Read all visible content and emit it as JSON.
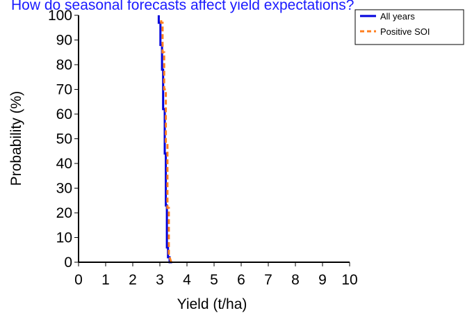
{
  "chart_data": {
    "type": "line",
    "title": "How do seasonal forecasts affect yield expectations?",
    "xlabel": "Yield (t/ha)",
    "ylabel": "Probability (%)",
    "xlim": [
      0,
      10
    ],
    "ylim": [
      0,
      100
    ],
    "x_ticks": [
      "0",
      "1",
      "2",
      "3",
      "4",
      "5",
      "6",
      "7",
      "8",
      "9",
      "10"
    ],
    "y_ticks": [
      "0",
      "10",
      "20",
      "30",
      "40",
      "50",
      "60",
      "70",
      "80",
      "90",
      "100"
    ],
    "grid": false,
    "legend_position": "top-right",
    "series": [
      {
        "name": "All years",
        "color": "#0000dd",
        "style": "solid",
        "x": [
          2.96,
          2.96,
          3.02,
          3.02,
          3.08,
          3.08,
          3.12,
          3.12,
          3.18,
          3.18,
          3.22,
          3.22,
          3.26,
          3.26,
          3.3,
          3.3,
          3.36,
          3.36,
          3.45
        ],
        "y": [
          100,
          97,
          97,
          88,
          88,
          78,
          78,
          62,
          62,
          44,
          44,
          23,
          23,
          6,
          6,
          2,
          2,
          0,
          0
        ]
      },
      {
        "name": "Positive SOI",
        "color": "#ff7f1f",
        "style": "dashed",
        "x": [
          3.05,
          3.05,
          3.1,
          3.1,
          3.16,
          3.16,
          3.22,
          3.22,
          3.28,
          3.28,
          3.33,
          3.33,
          3.42
        ],
        "y": [
          98,
          97,
          97,
          85,
          85,
          70,
          70,
          48,
          48,
          22,
          22,
          3,
          0
        ]
      }
    ]
  }
}
